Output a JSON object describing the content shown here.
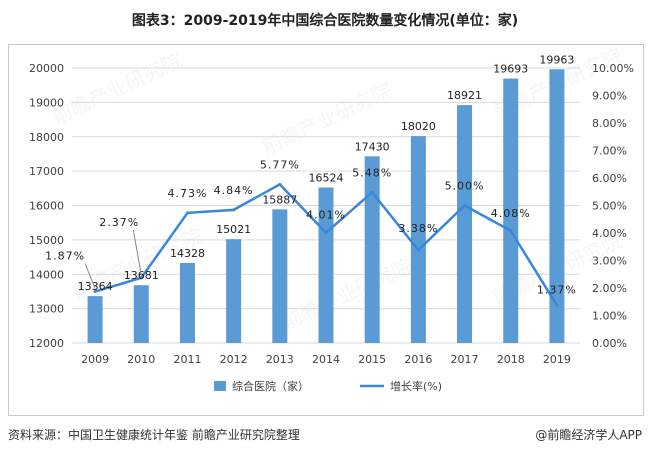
{
  "chart_data": {
    "type": "bar",
    "title": "图表3：2009-2019年中国综合医院数量变化情况(单位：家)",
    "categories": [
      "2009",
      "2010",
      "2011",
      "2012",
      "2013",
      "2014",
      "2015",
      "2016",
      "2017",
      "2018",
      "2019"
    ],
    "series": [
      {
        "name": "综合医院（家）",
        "type": "bar",
        "axis": "left",
        "color": "#5b9bd5",
        "values": [
          13364,
          13681,
          14328,
          15021,
          15887,
          16524,
          17430,
          18020,
          18921,
          19693,
          19963
        ],
        "labels": [
          "13364",
          "13681",
          "14328",
          "15021",
          "15887",
          "16524",
          "17430",
          "18020",
          "18921",
          "19693",
          "19963"
        ]
      },
      {
        "name": "增长率(%)",
        "type": "line",
        "axis": "right",
        "color": "#3a86d9",
        "values": [
          1.87,
          2.37,
          4.73,
          4.84,
          5.77,
          4.01,
          5.48,
          3.38,
          5.0,
          4.08,
          1.37
        ],
        "labels": [
          "1.87%",
          "2.37%",
          "4.73%",
          "4.84%",
          "5.77%",
          "4.01%",
          "5.48%",
          "3.38%",
          "5.00%",
          "4.08%",
          "1.37%"
        ]
      }
    ],
    "y_left": {
      "min": 12000,
      "max": 20000,
      "step": 1000,
      "ticks": [
        "12000",
        "13000",
        "14000",
        "15000",
        "16000",
        "17000",
        "18000",
        "19000",
        "20000"
      ]
    },
    "y_right": {
      "min": 0,
      "max": 10,
      "step": 1,
      "ticks": [
        "0.00%",
        "1.00%",
        "2.00%",
        "3.00%",
        "4.00%",
        "5.00%",
        "6.00%",
        "7.00%",
        "8.00%",
        "9.00%",
        "10.00%"
      ]
    },
    "grid": true,
    "legend": "bottom"
  },
  "footer": {
    "source": "资料来源：中国卫生健康统计年鉴 前瞻产业研究院整理",
    "brand": "@前瞻经济学人APP"
  },
  "watermark": "前瞻产业研究院",
  "colors": {
    "bar": "#5b9bd5",
    "line": "#3a86d9",
    "grid": "#d9d9d9",
    "text": "#404040"
  }
}
